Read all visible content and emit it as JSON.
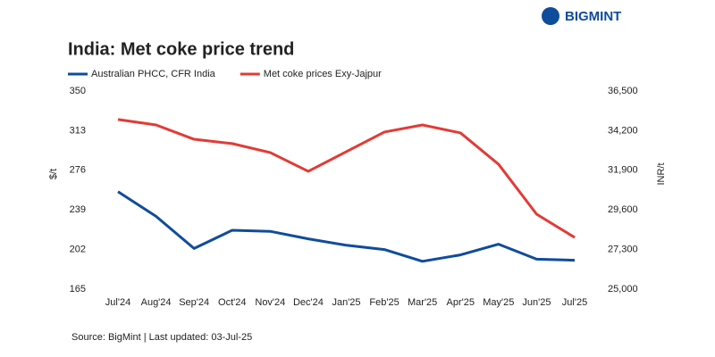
{
  "chart_data": {
    "type": "line",
    "brand": "BIGMINT",
    "title": "India: Met coke price trend",
    "source": "Source: BigMint | Last updated: 03-Jul-25",
    "ylabel": "$/t",
    "y2label": "INR/t",
    "categories": [
      "Jul'24",
      "Aug'24",
      "Sep'24",
      "Oct'24",
      "Nov'24",
      "Dec'24",
      "Jan'25",
      "Feb'25",
      "Mar'25",
      "Apr'25",
      "May'25",
      "Jun'25",
      "Jul'25"
    ],
    "series": [
      {
        "name": "Australian PHCC, CFR India",
        "color": "#0f4c9c",
        "values": [
          256,
          233,
          203,
          220,
          219,
          212,
          206,
          202,
          191,
          197,
          207,
          193,
          192
        ]
      },
      {
        "name": "Met coke prices Exy-Jajpur",
        "color": "#e23b36",
        "axis": "y2",
        "values": [
          34850,
          34530,
          33700,
          33450,
          32930,
          31840,
          32980,
          34120,
          34530,
          34070,
          32250,
          29350,
          28000
        ]
      }
    ],
    "ylim": [
      165,
      350
    ],
    "yticks": [
      165,
      202,
      239,
      276,
      313,
      350
    ],
    "y2lim": [
      25000,
      36500
    ],
    "y2ticks": [
      {
        "value": 25000,
        "label": "25,000"
      },
      {
        "value": 27300,
        "label": "27,300"
      },
      {
        "value": 29600,
        "label": "29,600"
      },
      {
        "value": 31900,
        "label": "31,900"
      },
      {
        "value": 34200,
        "label": "34,200"
      },
      {
        "value": 36500,
        "label": "36,500"
      }
    ],
    "grid": false
  }
}
